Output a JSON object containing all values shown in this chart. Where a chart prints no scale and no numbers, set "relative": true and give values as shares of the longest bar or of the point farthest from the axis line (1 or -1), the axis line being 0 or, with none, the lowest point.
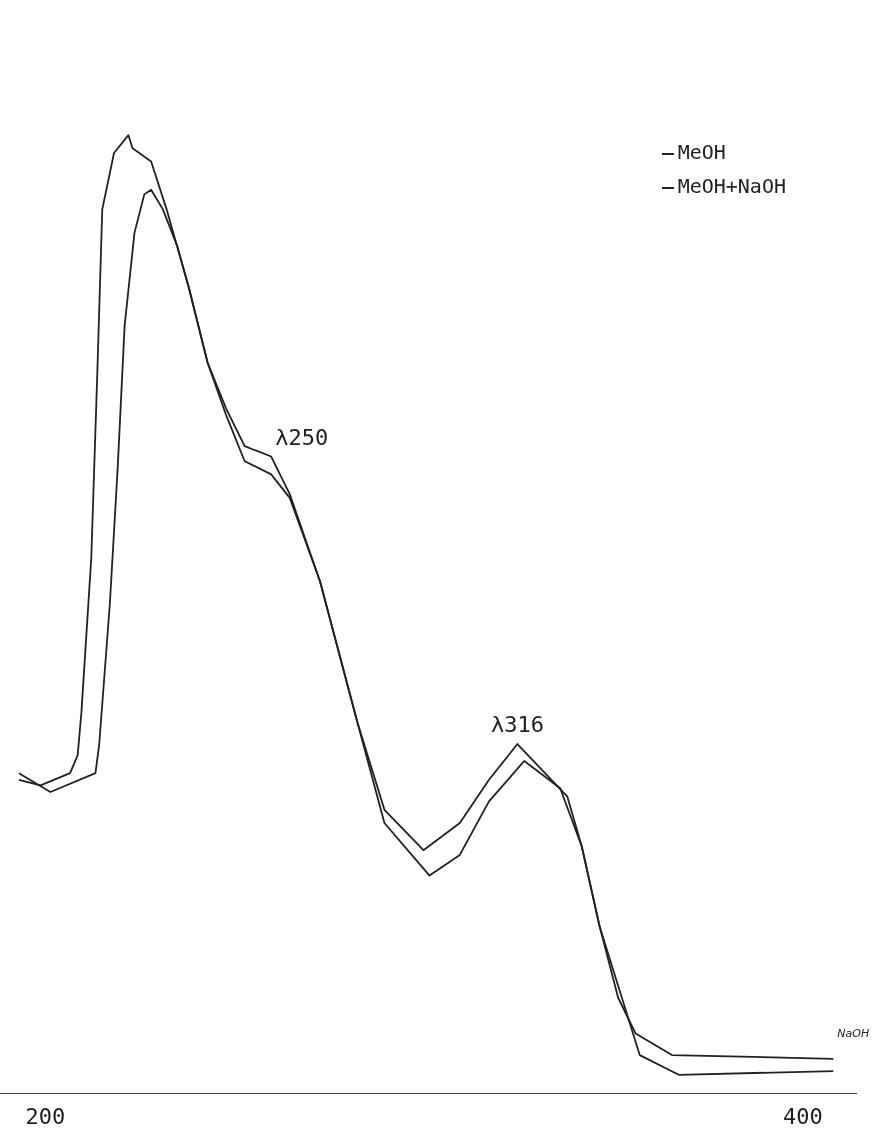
{
  "chart_data": {
    "type": "line",
    "relative": true,
    "xlim": [
      188,
      414
    ],
    "xticks": [
      200,
      400
    ],
    "tick_labels": "x",
    "legend": "top right",
    "marker": "none",
    "line_style": "solid",
    "series": [
      {
        "name": "MeOH+NaOH",
        "color": "#222223",
        "x": [
          193.0,
          198.7,
          206.5,
          208.5,
          209.5,
          212.1,
          213.7,
          215.0,
          218.1,
          221.9,
          223.0,
          227.9,
          232.0,
          237.9,
          242.8,
          247.7,
          252.6,
          259.6,
          264.5,
          272.5,
          282.3,
          289.5,
          299.8,
          309.4,
          317.1,
          324.6,
          337.8,
          341.6,
          346.3,
          351.2,
          355.8,
          365.4,
          408.0
        ],
        "values": [
          0.314,
          0.308,
          0.321,
          0.34,
          0.386,
          0.55,
          0.748,
          0.921,
          0.981,
          1.0,
          0.986,
          0.972,
          0.921,
          0.837,
          0.758,
          0.709,
          0.669,
          0.658,
          0.618,
          0.525,
          0.376,
          0.282,
          0.239,
          0.268,
          0.314,
          0.352,
          0.296,
          0.243,
          0.158,
          0.082,
          0.044,
          0.021,
          0.017
        ]
      },
      {
        "name": "MeOH",
        "color": "#222222",
        "x": [
          193.0,
          201.3,
          213.2,
          214.2,
          217.0,
          219.1,
          220.9,
          223.5,
          226.1,
          227.9,
          231.0,
          234.8,
          237.9,
          242.8,
          247.7,
          252.6,
          259.6,
          264.5,
          272.5,
          282.3,
          289.5,
          301.4,
          309.4,
          317.1,
          326.4,
          335.9,
          341.6,
          346.3,
          356.9,
          367.2,
          408.0
        ],
        "values": [
          0.321,
          0.301,
          0.321,
          0.352,
          0.501,
          0.648,
          0.797,
          0.896,
          0.937,
          0.942,
          0.921,
          0.882,
          0.837,
          0.758,
          0.702,
          0.653,
          0.639,
          0.614,
          0.525,
          0.376,
          0.268,
          0.212,
          0.234,
          0.291,
          0.334,
          0.305,
          0.243,
          0.158,
          0.021,
          0.0,
          0.004
        ]
      }
    ],
    "annotations": [
      {
        "text": "λ250",
        "x": 259.6,
        "y": 0.658
      },
      {
        "text": "λ316",
        "x": 324.6,
        "y": 0.352
      },
      {
        "text": "NaOH",
        "x": 408.0,
        "y": 0.017
      }
    ]
  }
}
